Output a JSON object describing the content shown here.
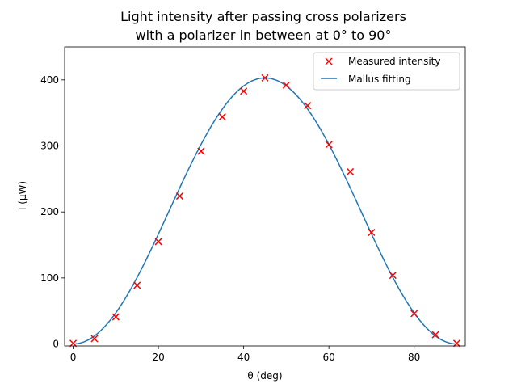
{
  "chart_data": {
    "type": "scatter",
    "title_line1": "Light intensity after passing cross polarizers",
    "title_line2": "with a polarizer in between at 0° to 90°",
    "xlabel": "θ (deg)",
    "ylabel": "I (μW)",
    "xlim": [
      -2,
      92
    ],
    "ylim": [
      -3,
      450
    ],
    "xticks": [
      0,
      20,
      40,
      60,
      80
    ],
    "yticks": [
      0,
      100,
      200,
      300,
      400
    ],
    "grid": false,
    "legend_position": "top-right",
    "series": [
      {
        "name": "Measured intensity",
        "kind": "scatter",
        "marker": "x",
        "color": "#ff0000",
        "x": [
          0,
          5,
          10,
          15,
          20,
          25,
          30,
          35,
          40,
          45,
          50,
          55,
          60,
          65,
          70,
          75,
          80,
          85,
          90
        ],
        "y": [
          1,
          8,
          41,
          89,
          155,
          224,
          292,
          344,
          383,
          403,
          392,
          361,
          302,
          261,
          169,
          104,
          46,
          14,
          1
        ]
      },
      {
        "name": "Mallus fitting",
        "kind": "line",
        "color": "#1f77b4",
        "model": "A*sin^2(2*theta)",
        "amplitude": 403,
        "x_range": [
          0,
          90
        ]
      }
    ]
  }
}
